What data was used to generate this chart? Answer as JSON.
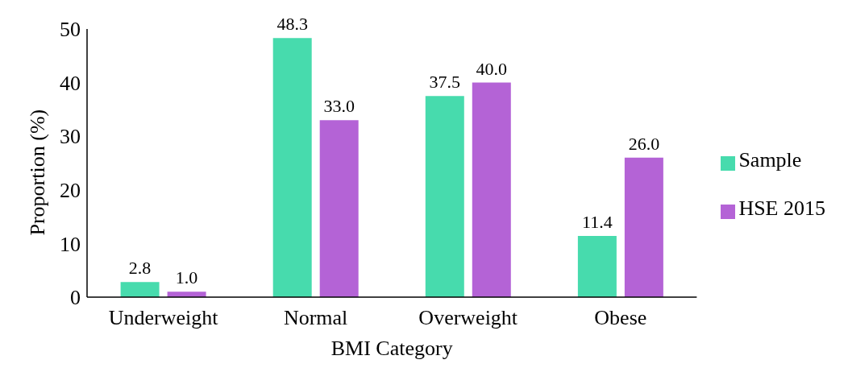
{
  "chart_data": {
    "type": "bar",
    "xlabel": "BMI Category",
    "ylabel": "Proportion (%)",
    "categories": [
      "Underweight",
      "Normal",
      "Overweight",
      "Obese"
    ],
    "series": [
      {
        "name": "Sample",
        "color": "#47dbad",
        "values": [
          2.8,
          48.3,
          37.5,
          11.4
        ],
        "value_labels": [
          "2.8",
          "48.3",
          "37.5",
          "11.4"
        ]
      },
      {
        "name": "HSE 2015",
        "color": "#b463d6",
        "values": [
          1.0,
          33.0,
          40.0,
          26.0
        ],
        "value_labels": [
          "1.0",
          "33.0",
          "40.0",
          "26.0"
        ]
      }
    ],
    "ylim": [
      0,
      50
    ],
    "yticks": [
      0,
      10,
      20,
      30,
      40,
      50
    ],
    "grid": false,
    "legend": "right"
  }
}
